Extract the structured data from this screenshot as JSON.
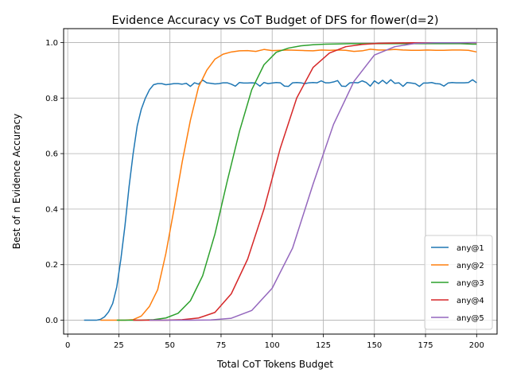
{
  "chart_data": {
    "type": "line",
    "title": "Evidence Accuracy vs CoT Budget of DFS for flower(d=2)",
    "xlabel": "Total CoT Tokens Budget",
    "ylabel": "Best of n Evidence Accuracy",
    "xlim": [
      -2,
      210
    ],
    "ylim": [
      -0.05,
      1.05
    ],
    "xticks": [
      0,
      25,
      50,
      75,
      100,
      125,
      150,
      175,
      200
    ],
    "yticks": [
      0.0,
      0.2,
      0.4,
      0.6,
      0.8,
      1.0
    ],
    "ytick_labels": [
      "0.0",
      "0.2",
      "0.4",
      "0.6",
      "0.8",
      "1.0"
    ],
    "grid": true,
    "legend_position": "lower-right",
    "series": [
      {
        "name": "any@1",
        "color": "#1f77b4",
        "points": [
          [
            8,
            0
          ],
          [
            10,
            0
          ],
          [
            12,
            0
          ],
          [
            14,
            0
          ],
          [
            16,
            0.003
          ],
          [
            18,
            0.012
          ],
          [
            20,
            0.03
          ],
          [
            22,
            0.06
          ],
          [
            24,
            0.12
          ],
          [
            26,
            0.22
          ],
          [
            28,
            0.34
          ],
          [
            30,
            0.48
          ],
          [
            32,
            0.6
          ],
          [
            34,
            0.7
          ],
          [
            36,
            0.76
          ],
          [
            38,
            0.8
          ],
          [
            40,
            0.83
          ],
          [
            42,
            0.848
          ],
          [
            44,
            0.852
          ],
          [
            46,
            0.852
          ],
          [
            48,
            0.848
          ],
          [
            50,
            0.85
          ],
          [
            52,
            0.852
          ],
          [
            54,
            0.852
          ],
          [
            56,
            0.85
          ],
          [
            58,
            0.853
          ],
          [
            60,
            0.842
          ],
          [
            62,
            0.855
          ],
          [
            64,
            0.85
          ],
          [
            66,
            0.865
          ],
          [
            68,
            0.855
          ],
          [
            70,
            0.853
          ],
          [
            72,
            0.851
          ],
          [
            74,
            0.852
          ],
          [
            76,
            0.855
          ],
          [
            78,
            0.855
          ],
          [
            80,
            0.85
          ],
          [
            82,
            0.843
          ],
          [
            84,
            0.856
          ],
          [
            86,
            0.854
          ],
          [
            88,
            0.854
          ],
          [
            90,
            0.855
          ],
          [
            92,
            0.854
          ],
          [
            94,
            0.843
          ],
          [
            96,
            0.856
          ],
          [
            98,
            0.852
          ],
          [
            100,
            0.854
          ],
          [
            102,
            0.856
          ],
          [
            104,
            0.855
          ],
          [
            106,
            0.843
          ],
          [
            108,
            0.842
          ],
          [
            110,
            0.855
          ],
          [
            112,
            0.856
          ],
          [
            114,
            0.855
          ],
          [
            116,
            0.852
          ],
          [
            118,
            0.855
          ],
          [
            120,
            0.856
          ],
          [
            122,
            0.855
          ],
          [
            124,
            0.862
          ],
          [
            126,
            0.855
          ],
          [
            128,
            0.855
          ],
          [
            130,
            0.858
          ],
          [
            132,
            0.863
          ],
          [
            134,
            0.843
          ],
          [
            136,
            0.842
          ],
          [
            138,
            0.855
          ],
          [
            140,
            0.856
          ],
          [
            142,
            0.855
          ],
          [
            144,
            0.862
          ],
          [
            146,
            0.856
          ],
          [
            148,
            0.843
          ],
          [
            150,
            0.862
          ],
          [
            152,
            0.852
          ],
          [
            154,
            0.864
          ],
          [
            156,
            0.852
          ],
          [
            158,
            0.866
          ],
          [
            160,
            0.853
          ],
          [
            162,
            0.855
          ],
          [
            164,
            0.842
          ],
          [
            166,
            0.856
          ],
          [
            168,
            0.854
          ],
          [
            170,
            0.852
          ],
          [
            172,
            0.842
          ],
          [
            174,
            0.854
          ],
          [
            176,
            0.854
          ],
          [
            178,
            0.856
          ],
          [
            180,
            0.852
          ],
          [
            182,
            0.851
          ],
          [
            184,
            0.843
          ],
          [
            186,
            0.854
          ],
          [
            188,
            0.856
          ],
          [
            190,
            0.855
          ],
          [
            192,
            0.855
          ],
          [
            194,
            0.855
          ],
          [
            196,
            0.856
          ],
          [
            198,
            0.866
          ],
          [
            200,
            0.855
          ]
        ]
      },
      {
        "name": "any@2",
        "color": "#ff7f0e",
        "points": [
          [
            16,
            0
          ],
          [
            20,
            0
          ],
          [
            24,
            0
          ],
          [
            28,
            0
          ],
          [
            32,
            0.002
          ],
          [
            36,
            0.015
          ],
          [
            40,
            0.05
          ],
          [
            44,
            0.11
          ],
          [
            48,
            0.24
          ],
          [
            52,
            0.4
          ],
          [
            56,
            0.57
          ],
          [
            60,
            0.72
          ],
          [
            64,
            0.84
          ],
          [
            68,
            0.9
          ],
          [
            72,
            0.94
          ],
          [
            76,
            0.958
          ],
          [
            80,
            0.966
          ],
          [
            84,
            0.97
          ],
          [
            88,
            0.971
          ],
          [
            92,
            0.968
          ],
          [
            96,
            0.975
          ],
          [
            100,
            0.971
          ],
          [
            104,
            0.972
          ],
          [
            108,
            0.973
          ],
          [
            112,
            0.972
          ],
          [
            116,
            0.971
          ],
          [
            120,
            0.97
          ],
          [
            124,
            0.973
          ],
          [
            128,
            0.972
          ],
          [
            132,
            0.973
          ],
          [
            136,
            0.972
          ],
          [
            140,
            0.968
          ],
          [
            144,
            0.97
          ],
          [
            148,
            0.976
          ],
          [
            152,
            0.973
          ],
          [
            156,
            0.973
          ],
          [
            160,
            0.975
          ],
          [
            164,
            0.973
          ],
          [
            168,
            0.972
          ],
          [
            172,
            0.972
          ],
          [
            176,
            0.973
          ],
          [
            180,
            0.972
          ],
          [
            184,
            0.972
          ],
          [
            188,
            0.973
          ],
          [
            192,
            0.973
          ],
          [
            196,
            0.972
          ],
          [
            200,
            0.966
          ]
        ]
      },
      {
        "name": "any@3",
        "color": "#2ca02c",
        "points": [
          [
            24,
            0
          ],
          [
            30,
            0
          ],
          [
            36,
            0
          ],
          [
            42,
            0.002
          ],
          [
            48,
            0.008
          ],
          [
            54,
            0.025
          ],
          [
            60,
            0.07
          ],
          [
            66,
            0.16
          ],
          [
            72,
            0.31
          ],
          [
            78,
            0.5
          ],
          [
            84,
            0.68
          ],
          [
            90,
            0.83
          ],
          [
            96,
            0.92
          ],
          [
            102,
            0.965
          ],
          [
            108,
            0.98
          ],
          [
            114,
            0.988
          ],
          [
            120,
            0.992
          ],
          [
            126,
            0.994
          ],
          [
            132,
            0.995
          ],
          [
            138,
            0.996
          ],
          [
            144,
            0.996
          ],
          [
            150,
            0.996
          ],
          [
            156,
            0.996
          ],
          [
            162,
            0.996
          ],
          [
            168,
            0.996
          ],
          [
            174,
            0.996
          ],
          [
            180,
            0.996
          ],
          [
            186,
            0.996
          ],
          [
            192,
            0.996
          ],
          [
            198,
            0.994
          ],
          [
            200,
            0.994
          ]
        ]
      },
      {
        "name": "any@4",
        "color": "#d62728",
        "points": [
          [
            32,
            0
          ],
          [
            40,
            0
          ],
          [
            48,
            0
          ],
          [
            56,
            0.002
          ],
          [
            64,
            0.008
          ],
          [
            72,
            0.028
          ],
          [
            80,
            0.095
          ],
          [
            88,
            0.22
          ],
          [
            96,
            0.4
          ],
          [
            104,
            0.62
          ],
          [
            112,
            0.8
          ],
          [
            120,
            0.91
          ],
          [
            128,
            0.962
          ],
          [
            136,
            0.985
          ],
          [
            144,
            0.993
          ],
          [
            152,
            0.997
          ],
          [
            160,
            0.998
          ],
          [
            168,
            0.999
          ],
          [
            176,
            0.999
          ],
          [
            184,
            0.999
          ],
          [
            192,
            0.999
          ],
          [
            200,
            0.999
          ]
        ]
      },
      {
        "name": "any@5",
        "color": "#9467bd",
        "points": [
          [
            40,
            0
          ],
          [
            50,
            0
          ],
          [
            60,
            0
          ],
          [
            70,
            0.001
          ],
          [
            80,
            0.007
          ],
          [
            90,
            0.035
          ],
          [
            100,
            0.115
          ],
          [
            110,
            0.26
          ],
          [
            120,
            0.49
          ],
          [
            130,
            0.705
          ],
          [
            140,
            0.86
          ],
          [
            150,
            0.955
          ],
          [
            160,
            0.985
          ],
          [
            170,
            0.997
          ],
          [
            180,
            0.999
          ],
          [
            190,
            0.999
          ],
          [
            200,
            1.0
          ]
        ]
      }
    ]
  }
}
